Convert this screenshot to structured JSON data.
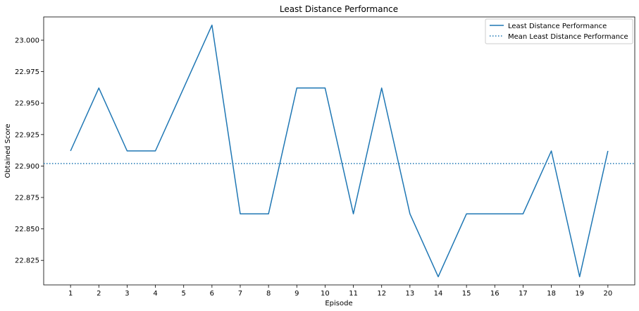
{
  "chart_data": {
    "type": "line",
    "title": "Least Distance Performance",
    "xlabel": "Episode",
    "ylabel": "Obtained Score",
    "x": [
      1,
      2,
      3,
      4,
      5,
      6,
      7,
      8,
      9,
      10,
      11,
      12,
      13,
      14,
      15,
      16,
      17,
      18,
      19,
      20
    ],
    "xticks": [
      "1",
      "2",
      "3",
      "4",
      "5",
      "6",
      "7",
      "8",
      "9",
      "10",
      "11",
      "12",
      "13",
      "14",
      "15",
      "16",
      "17",
      "18",
      "19",
      "20"
    ],
    "xlim": [
      0.05,
      20.95
    ],
    "ylim": [
      22.8055,
      23.0185
    ],
    "yticks": [
      22.825,
      22.85,
      22.875,
      22.9,
      22.925,
      22.95,
      22.975,
      23.0
    ],
    "ytick_labels": [
      "22.825",
      "22.850",
      "22.875",
      "22.900",
      "22.925",
      "22.950",
      "22.975",
      "23.000"
    ],
    "series": [
      {
        "name": "Least Distance Performance",
        "style": "solid",
        "color": "#1f77b4",
        "values": [
          22.912,
          22.962,
          22.912,
          22.912,
          22.962,
          23.012,
          22.862,
          22.862,
          22.962,
          22.962,
          22.862,
          22.962,
          22.862,
          22.812,
          22.862,
          22.862,
          22.862,
          22.912,
          22.812,
          22.912
        ]
      },
      {
        "name": "Mean Least Distance Performance",
        "style": "dotted",
        "color": "#1f77b4",
        "value": 22.902
      }
    ],
    "grid": false,
    "legend": "top-right"
  }
}
